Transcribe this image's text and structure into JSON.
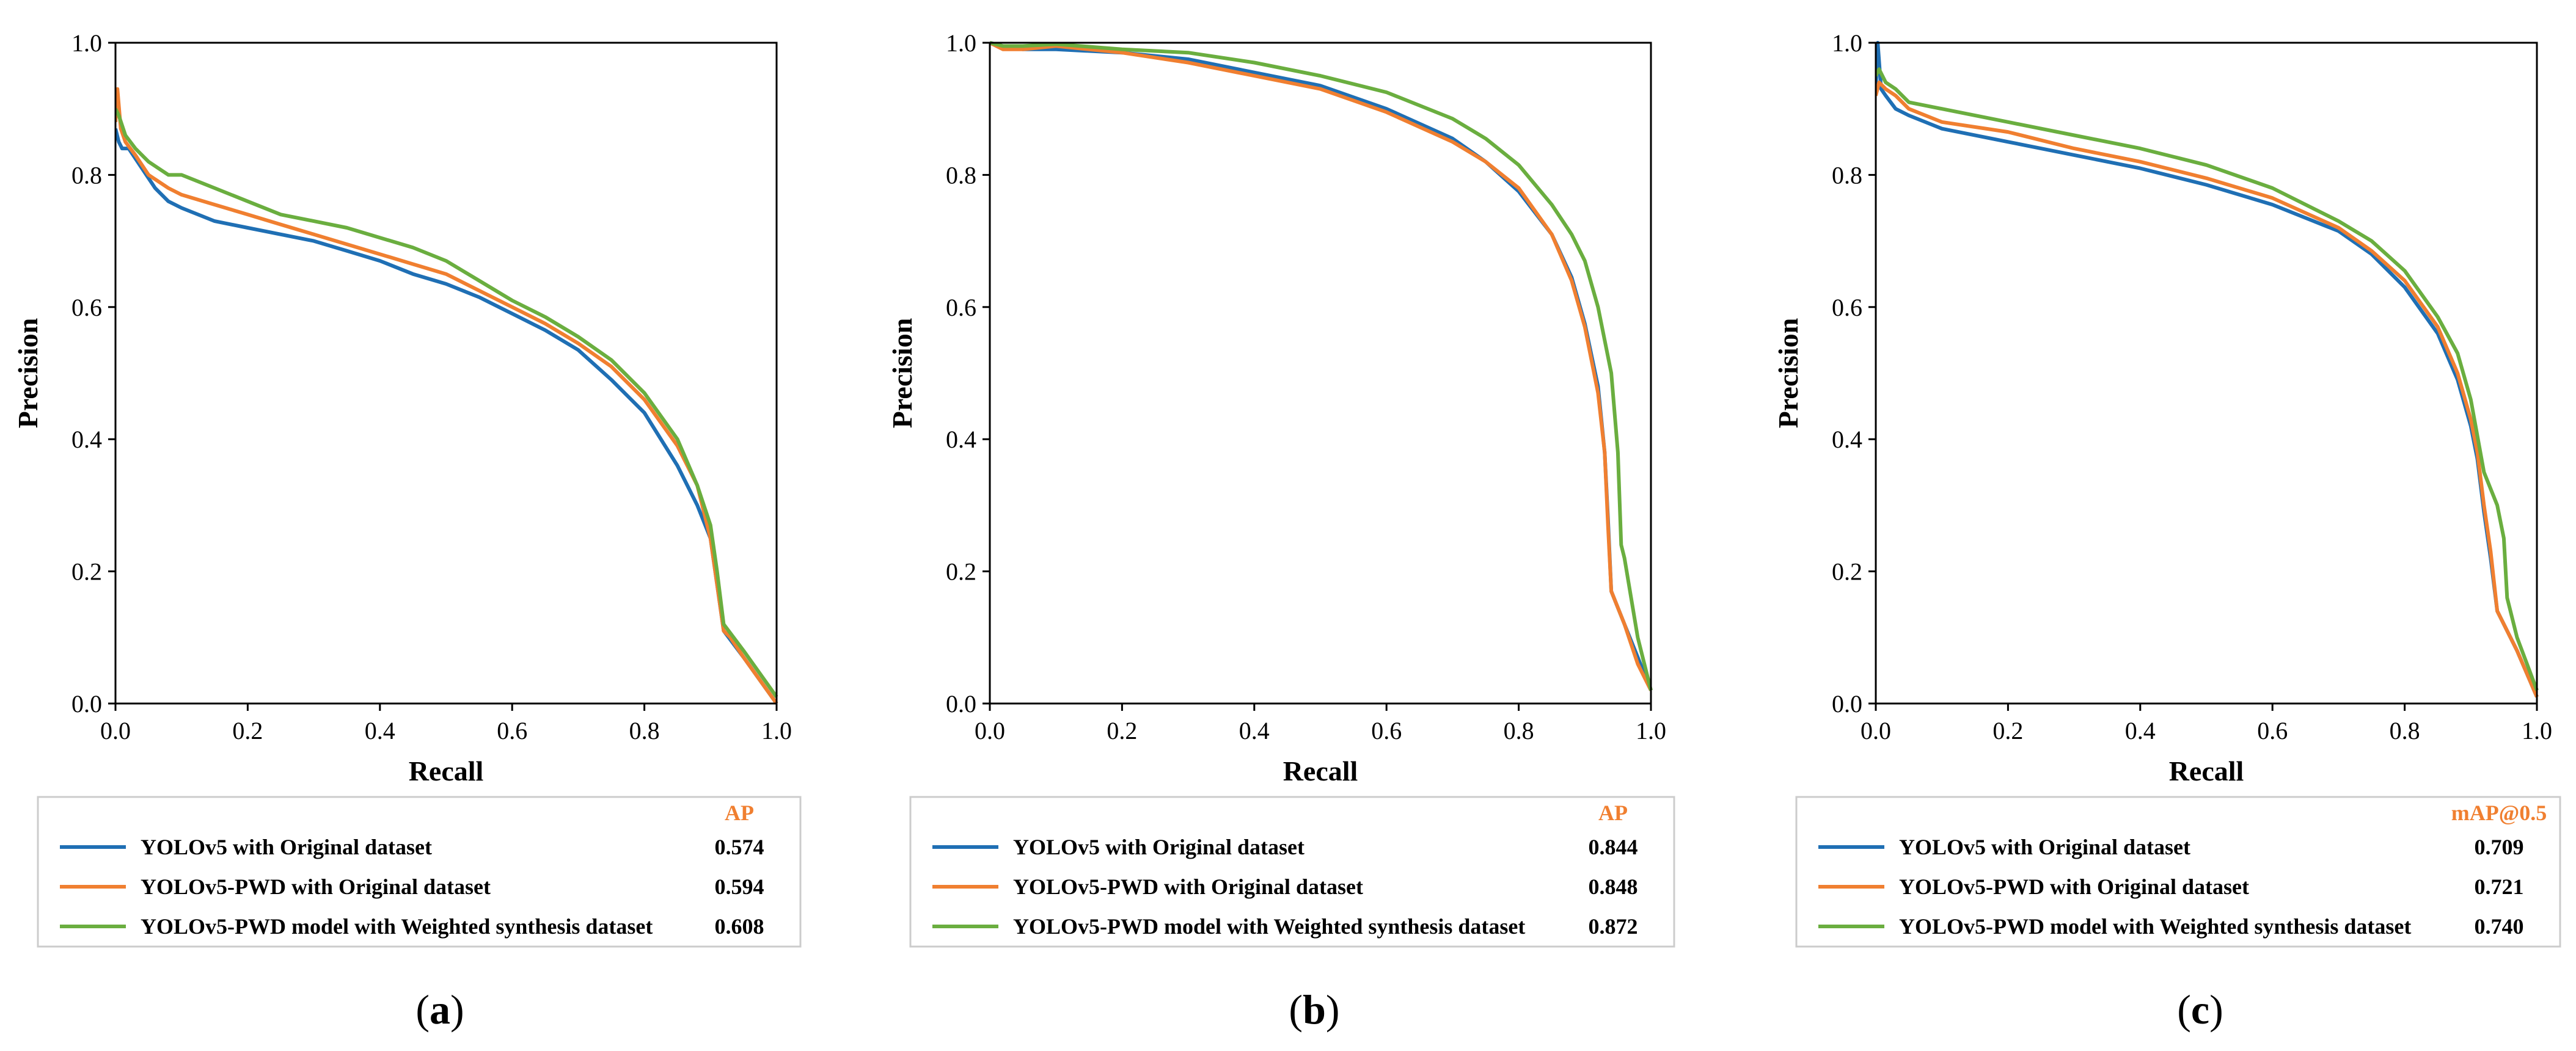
{
  "colors": {
    "yolov5_original": "#1f6fb4",
    "pwd_original": "#f07f30",
    "pwd_weighted": "#6aae3f",
    "legend_header": "#f07f30",
    "axes": "#000000",
    "legend_border": "#cccccc"
  },
  "chart_data": [
    {
      "type": "line",
      "caption_label": "a",
      "xlabel": "Recall",
      "ylabel": "Precision",
      "xlim": [
        0,
        1
      ],
      "ylim": [
        0,
        1
      ],
      "xticks": [
        "0.0",
        "0.2",
        "0.4",
        "0.6",
        "0.8",
        "1.0"
      ],
      "yticks": [
        "0.0",
        "0.2",
        "0.4",
        "0.6",
        "0.8",
        "1.0"
      ],
      "grid": false,
      "legend_header": "AP",
      "series": [
        {
          "name": "YOLOv5 with Original dataset",
          "color_key": "yolov5_original",
          "score": "0.574",
          "x": [
            0.0,
            0.005,
            0.01,
            0.02,
            0.04,
            0.06,
            0.08,
            0.1,
            0.15,
            0.2,
            0.25,
            0.3,
            0.35,
            0.4,
            0.45,
            0.5,
            0.55,
            0.6,
            0.65,
            0.7,
            0.75,
            0.8,
            0.85,
            0.88,
            0.9,
            0.91,
            0.92,
            0.95,
            1.0
          ],
          "y": [
            0.87,
            0.85,
            0.84,
            0.84,
            0.81,
            0.78,
            0.76,
            0.75,
            0.73,
            0.72,
            0.71,
            0.7,
            0.685,
            0.67,
            0.65,
            0.635,
            0.615,
            0.59,
            0.565,
            0.535,
            0.49,
            0.44,
            0.36,
            0.3,
            0.25,
            0.18,
            0.11,
            0.07,
            0.0
          ]
        },
        {
          "name": "YOLOv5-PWD with Original dataset",
          "color_key": "pwd_original",
          "score": "0.594",
          "x": [
            0.0,
            0.003,
            0.008,
            0.015,
            0.03,
            0.05,
            0.08,
            0.1,
            0.15,
            0.2,
            0.25,
            0.3,
            0.35,
            0.4,
            0.45,
            0.5,
            0.55,
            0.6,
            0.65,
            0.7,
            0.75,
            0.8,
            0.85,
            0.88,
            0.9,
            0.91,
            0.92,
            0.93,
            0.95,
            1.0
          ],
          "y": [
            0.88,
            0.93,
            0.87,
            0.85,
            0.83,
            0.8,
            0.78,
            0.77,
            0.755,
            0.74,
            0.725,
            0.71,
            0.695,
            0.68,
            0.665,
            0.65,
            0.625,
            0.6,
            0.575,
            0.545,
            0.51,
            0.46,
            0.39,
            0.33,
            0.25,
            0.18,
            0.11,
            0.1,
            0.07,
            0.0
          ]
        },
        {
          "name": "YOLOv5-PWD model with Weighted synthesis dataset",
          "color_key": "pwd_weighted",
          "score": "0.608",
          "x": [
            0.0,
            0.005,
            0.015,
            0.03,
            0.05,
            0.08,
            0.1,
            0.15,
            0.2,
            0.25,
            0.3,
            0.35,
            0.4,
            0.45,
            0.5,
            0.55,
            0.6,
            0.65,
            0.7,
            0.75,
            0.8,
            0.85,
            0.88,
            0.9,
            0.91,
            0.92,
            0.95,
            1.0
          ],
          "y": [
            0.9,
            0.89,
            0.86,
            0.84,
            0.82,
            0.8,
            0.8,
            0.78,
            0.76,
            0.74,
            0.73,
            0.72,
            0.705,
            0.69,
            0.67,
            0.64,
            0.61,
            0.585,
            0.555,
            0.52,
            0.47,
            0.4,
            0.33,
            0.27,
            0.2,
            0.12,
            0.08,
            0.01
          ]
        }
      ]
    },
    {
      "type": "line",
      "caption_label": "b",
      "xlabel": "Recall",
      "ylabel": "Precision",
      "xlim": [
        0,
        1
      ],
      "ylim": [
        0,
        1
      ],
      "xticks": [
        "0.0",
        "0.2",
        "0.4",
        "0.6",
        "0.8",
        "1.0"
      ],
      "yticks": [
        "0.0",
        "0.2",
        "0.4",
        "0.6",
        "0.8",
        "1.0"
      ],
      "grid": false,
      "legend_header": "AP",
      "series": [
        {
          "name": "YOLOv5 with Original dataset",
          "color_key": "yolov5_original",
          "score": "0.844",
          "x": [
            0.0,
            0.02,
            0.05,
            0.1,
            0.2,
            0.3,
            0.4,
            0.5,
            0.6,
            0.7,
            0.75,
            0.8,
            0.85,
            0.88,
            0.9,
            0.92,
            0.93,
            0.935,
            0.94,
            0.96,
            0.98,
            1.0
          ],
          "y": [
            1.0,
            0.995,
            0.99,
            0.99,
            0.985,
            0.975,
            0.955,
            0.935,
            0.9,
            0.855,
            0.82,
            0.775,
            0.71,
            0.645,
            0.575,
            0.48,
            0.38,
            0.28,
            0.17,
            0.12,
            0.07,
            0.02
          ]
        },
        {
          "name": "YOLOv5-PWD with Original dataset",
          "color_key": "pwd_original",
          "score": "0.848",
          "x": [
            0.0,
            0.02,
            0.05,
            0.1,
            0.2,
            0.3,
            0.4,
            0.5,
            0.6,
            0.7,
            0.75,
            0.8,
            0.85,
            0.88,
            0.9,
            0.92,
            0.93,
            0.935,
            0.94,
            0.96,
            0.98,
            1.0
          ],
          "y": [
            1.0,
            0.99,
            0.99,
            0.995,
            0.985,
            0.97,
            0.95,
            0.93,
            0.895,
            0.85,
            0.82,
            0.78,
            0.71,
            0.64,
            0.57,
            0.47,
            0.38,
            0.27,
            0.17,
            0.12,
            0.06,
            0.02
          ]
        },
        {
          "name": "YOLOv5-PWD model with Weighted synthesis dataset",
          "color_key": "pwd_weighted",
          "score": "0.872",
          "x": [
            0.0,
            0.02,
            0.05,
            0.1,
            0.2,
            0.3,
            0.4,
            0.5,
            0.6,
            0.7,
            0.75,
            0.8,
            0.85,
            0.88,
            0.9,
            0.92,
            0.94,
            0.95,
            0.955,
            0.96,
            0.98,
            1.0
          ],
          "y": [
            1.0,
            0.995,
            0.995,
            0.998,
            0.99,
            0.985,
            0.97,
            0.95,
            0.925,
            0.885,
            0.855,
            0.815,
            0.755,
            0.71,
            0.67,
            0.6,
            0.5,
            0.38,
            0.24,
            0.22,
            0.1,
            0.02
          ]
        }
      ]
    },
    {
      "type": "line",
      "caption_label": "c",
      "xlabel": "Recall",
      "ylabel": "Precision",
      "xlim": [
        0,
        1
      ],
      "ylim": [
        0,
        1
      ],
      "xticks": [
        "0.0",
        "0.2",
        "0.4",
        "0.6",
        "0.8",
        "1.0"
      ],
      "yticks": [
        "0.0",
        "0.2",
        "0.4",
        "0.6",
        "0.8",
        "1.0"
      ],
      "grid": false,
      "legend_header": "mAP@0.5",
      "series": [
        {
          "name": "YOLOv5 with Original dataset",
          "color_key": "yolov5_original",
          "score": "0.709",
          "x": [
            0.0,
            0.003,
            0.008,
            0.015,
            0.03,
            0.05,
            0.1,
            0.2,
            0.3,
            0.4,
            0.5,
            0.6,
            0.7,
            0.75,
            0.8,
            0.85,
            0.88,
            0.9,
            0.91,
            0.92,
            0.93,
            0.94,
            0.97,
            1.0
          ],
          "y": [
            0.93,
            1.0,
            0.93,
            0.92,
            0.9,
            0.89,
            0.87,
            0.85,
            0.83,
            0.81,
            0.785,
            0.755,
            0.715,
            0.68,
            0.63,
            0.56,
            0.49,
            0.42,
            0.37,
            0.29,
            0.22,
            0.14,
            0.08,
            0.01
          ]
        },
        {
          "name": "YOLOv5-PWD with Original dataset",
          "color_key": "pwd_original",
          "score": "0.721",
          "x": [
            0.0,
            0.005,
            0.015,
            0.03,
            0.05,
            0.1,
            0.2,
            0.3,
            0.4,
            0.5,
            0.6,
            0.7,
            0.75,
            0.8,
            0.85,
            0.88,
            0.9,
            0.91,
            0.92,
            0.93,
            0.94,
            0.97,
            1.0
          ],
          "y": [
            0.92,
            0.94,
            0.93,
            0.92,
            0.9,
            0.88,
            0.865,
            0.84,
            0.82,
            0.795,
            0.765,
            0.72,
            0.685,
            0.64,
            0.57,
            0.5,
            0.43,
            0.38,
            0.3,
            0.23,
            0.14,
            0.08,
            0.01
          ]
        },
        {
          "name": "YOLOv5-PWD model with Weighted synthesis dataset",
          "color_key": "pwd_weighted",
          "score": "0.740",
          "x": [
            0.0,
            0.005,
            0.015,
            0.03,
            0.05,
            0.1,
            0.2,
            0.3,
            0.4,
            0.5,
            0.6,
            0.7,
            0.75,
            0.8,
            0.85,
            0.88,
            0.9,
            0.92,
            0.94,
            0.95,
            0.955,
            0.97,
            1.0
          ],
          "y": [
            0.95,
            0.96,
            0.94,
            0.93,
            0.91,
            0.9,
            0.88,
            0.86,
            0.84,
            0.815,
            0.78,
            0.73,
            0.7,
            0.655,
            0.585,
            0.53,
            0.46,
            0.35,
            0.3,
            0.25,
            0.16,
            0.1,
            0.02
          ]
        }
      ]
    }
  ]
}
